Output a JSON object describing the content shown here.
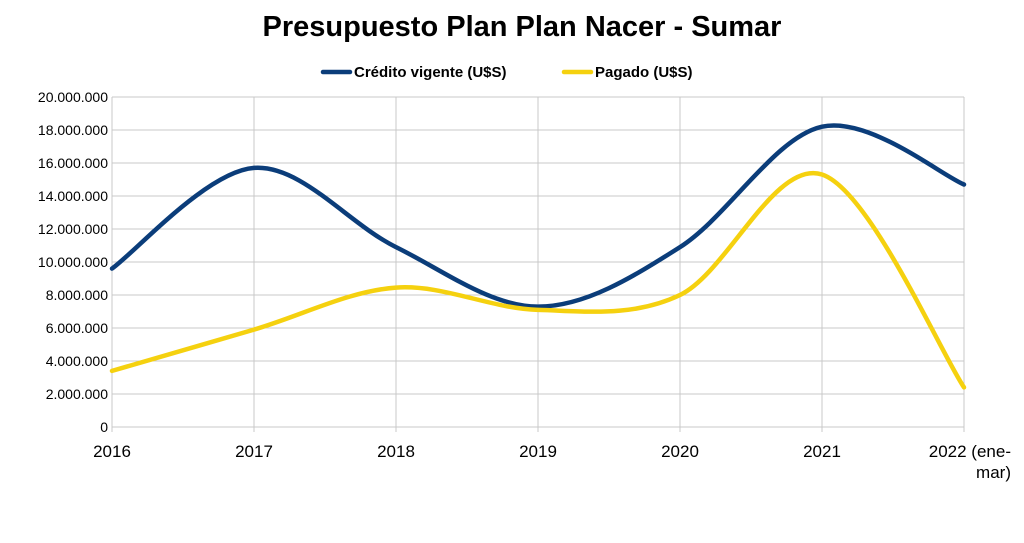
{
  "chart_data": {
    "type": "line",
    "title": "Presupuesto Plan Plan Nacer - Sumar",
    "categories": [
      "2016",
      "2017",
      "2018",
      "2019",
      "2020",
      "2021",
      "2022 (ene-mar)"
    ],
    "category_lines": [
      [
        "2016"
      ],
      [
        "2017"
      ],
      [
        "2018"
      ],
      [
        "2019"
      ],
      [
        "2020"
      ],
      [
        "2021"
      ],
      [
        "2022 (ene-",
        "mar)"
      ]
    ],
    "yticks": [
      "0",
      "2.000.000",
      "4.000.000",
      "6.000.000",
      "8.000.000",
      "10.000.000",
      "12.000.000",
      "14.000.000",
      "16.000.000",
      "18.000.000",
      "20.000.000"
    ],
    "ylim": [
      0,
      20000000
    ],
    "grid": true,
    "legend_position": "top",
    "series": [
      {
        "name": "Crédito vigente (U$S)",
        "color": "#0b3d7a",
        "values": [
          9600000,
          15700000,
          10900000,
          7300000,
          10900000,
          18200000,
          14700000
        ]
      },
      {
        "name": "Pagado (U$S)",
        "color": "#f5d10f",
        "values": [
          3400000,
          5900000,
          8450000,
          7100000,
          8000000,
          15300000,
          2400000
        ]
      }
    ]
  }
}
